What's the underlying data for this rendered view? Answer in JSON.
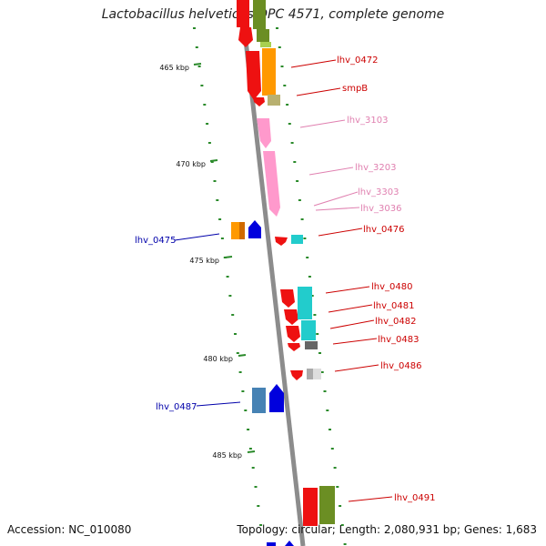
{
  "header": {
    "title": "Lactobacillus helveticus DPC 4571, complete genome"
  },
  "footer": {
    "accession": "Accession: NC_010080",
    "topology": "Topology: circular; Length: 2,080,931 bp; Genes: 1,683"
  },
  "ruler": {
    "ticks": [
      "465 kbp",
      "470 kbp",
      "475 kbp",
      "480 kbp",
      "485 kbp"
    ]
  },
  "colors": {
    "red": "#ee1111",
    "orange": "#ff9900",
    "olive": "#6b8e23",
    "yellowgreen": "#a8d050",
    "pink": "#ff99cc",
    "cyan": "#22cccc",
    "blue": "#0000dd",
    "steelblue": "#4682b4",
    "khaki": "#b8b070",
    "grey": "#bbbbbb",
    "darkgrey": "#666666",
    "axis": "#888888",
    "tick": "#2a8a2a",
    "label_red": "#cc0000",
    "label_pink": "#e080b0",
    "label_blue": "#0000aa"
  },
  "genes": [
    {
      "name": "lhv_0472",
      "label": "lhv_0472"
    },
    {
      "name": "smpB",
      "label": "smpB"
    },
    {
      "name": "lhv_3103",
      "label": "lhv_3103"
    },
    {
      "name": "lhv_3203",
      "label": "lhv_3203"
    },
    {
      "name": "lhv_3303",
      "label": "lhv_3303"
    },
    {
      "name": "lhv_3036",
      "label": "lhv_3036"
    },
    {
      "name": "lhv_0476",
      "label": "lhv_0476"
    },
    {
      "name": "lhv_0475",
      "label": "lhv_0475"
    },
    {
      "name": "lhv_0480",
      "label": "lhv_0480"
    },
    {
      "name": "lhv_0481",
      "label": "lhv_0481"
    },
    {
      "name": "lhv_0482",
      "label": "lhv_0482"
    },
    {
      "name": "lhv_0483",
      "label": "lhv_0483"
    },
    {
      "name": "lhv_0486",
      "label": "lhv_0486"
    },
    {
      "name": "lhv_0487",
      "label": "lhv_0487"
    },
    {
      "name": "lhv_0491",
      "label": "lhv_0491"
    }
  ]
}
